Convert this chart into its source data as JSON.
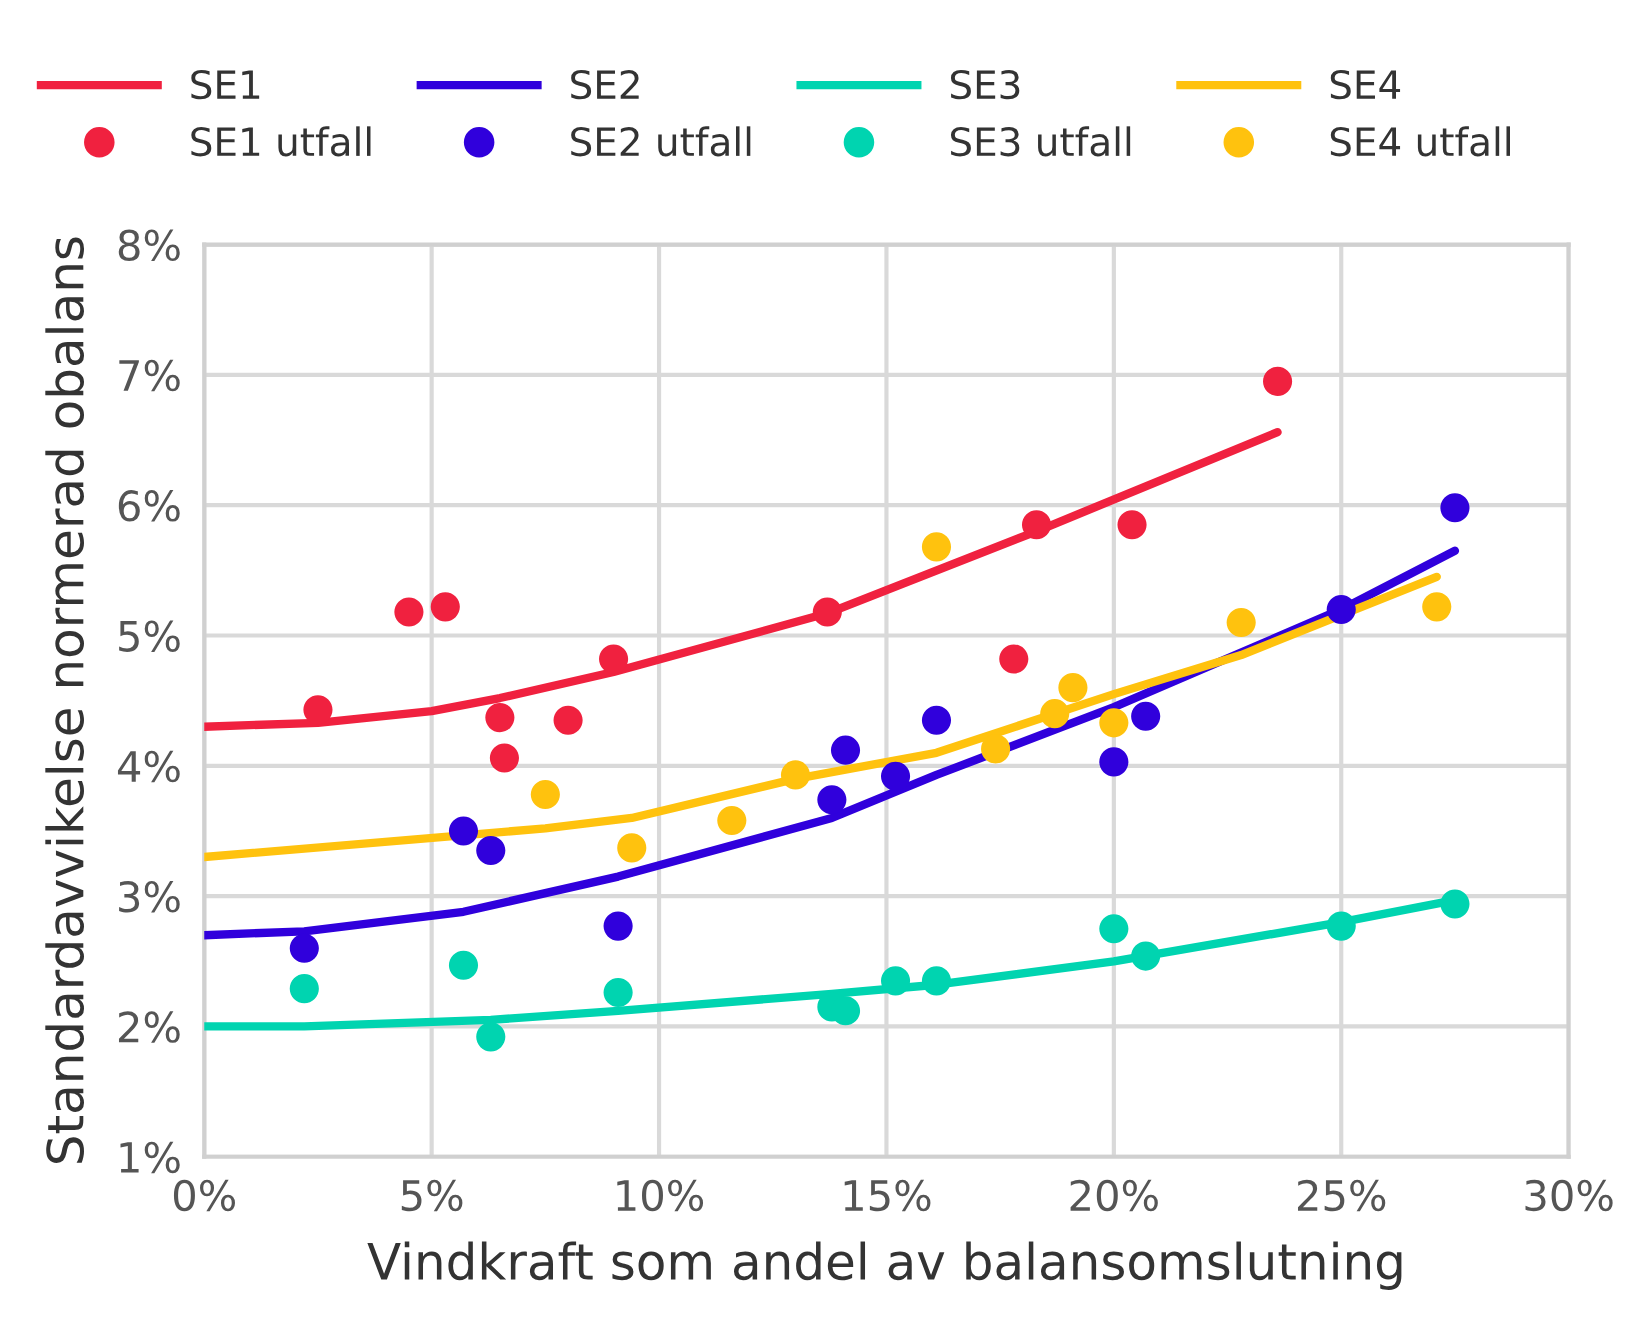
{
  "chart_data": {
    "type": "line",
    "xlabel": "Vindkraft som andel av balansomslutning",
    "ylabel": "Standardavvikelse normerad obalans",
    "xlim": [
      0,
      30
    ],
    "xticks": [
      {
        "value": 0,
        "label": "0%"
      },
      {
        "value": 5,
        "label": "5%"
      },
      {
        "value": 10,
        "label": "10%"
      },
      {
        "value": 15,
        "label": "15%"
      },
      {
        "value": 20,
        "label": "20%"
      },
      {
        "value": 25,
        "label": "25%"
      },
      {
        "value": 30,
        "label": "30%"
      }
    ],
    "ylim": [
      1,
      8
    ],
    "yticks": [
      {
        "value": 1,
        "label": "1%"
      },
      {
        "value": 2,
        "label": "2%"
      },
      {
        "value": 3,
        "label": "3%"
      },
      {
        "value": 4,
        "label": "4%"
      },
      {
        "value": 5,
        "label": "5%"
      },
      {
        "value": 6,
        "label": "6%"
      },
      {
        "value": 7,
        "label": "7%"
      },
      {
        "value": 8,
        "label": "8%"
      }
    ],
    "grid": true,
    "legend": "top",
    "line_style": "solid",
    "series": [
      {
        "name": "SE1",
        "marker": "none",
        "color": "#f0213f",
        "x": [
          0,
          2.5,
          5,
          6.5,
          9,
          13.7,
          18.3,
          23.6
        ],
        "values": [
          4.3,
          4.33,
          4.42,
          4.52,
          4.72,
          5.17,
          5.8,
          6.56
        ]
      },
      {
        "name": "SE1 utfall",
        "type": "scatter",
        "marker": "circle",
        "color": "#f0213f",
        "x": [
          2.5,
          4.5,
          5.3,
          6.5,
          6.6,
          8.0,
          9.0,
          13.7,
          17.8,
          18.3,
          20.4,
          23.6
        ],
        "values": [
          4.43,
          5.18,
          5.22,
          4.37,
          4.06,
          4.35,
          4.82,
          5.18,
          4.82,
          5.85,
          5.85,
          6.95
        ]
      },
      {
        "name": "SE2",
        "marker": "none",
        "color": "#3000dc",
        "x": [
          0,
          2.2,
          5.7,
          9.1,
          13.8,
          16.1,
          20,
          25,
          27.5
        ],
        "values": [
          2.7,
          2.73,
          2.88,
          3.15,
          3.6,
          3.93,
          4.45,
          5.2,
          5.65
        ]
      },
      {
        "name": "SE2 utfall",
        "type": "scatter",
        "marker": "circle",
        "color": "#3000dc",
        "x": [
          2.2,
          5.7,
          6.3,
          9.1,
          13.8,
          14.1,
          15.2,
          16.1,
          20.0,
          20.7,
          25.0,
          27.5
        ],
        "values": [
          2.6,
          3.5,
          3.35,
          2.77,
          3.74,
          4.12,
          3.92,
          4.35,
          4.03,
          4.38,
          5.2,
          5.98
        ]
      },
      {
        "name": "SE3",
        "marker": "none",
        "color": "#00d4b0",
        "x": [
          0,
          2.2,
          6.3,
          9.1,
          13.8,
          16.1,
          20,
          25,
          27.5
        ],
        "values": [
          2.0,
          2.0,
          2.05,
          2.12,
          2.25,
          2.32,
          2.5,
          2.8,
          2.97
        ]
      },
      {
        "name": "SE3 utfall",
        "type": "scatter",
        "marker": "circle",
        "color": "#00d4b0",
        "x": [
          2.2,
          5.7,
          6.3,
          9.1,
          13.8,
          14.1,
          15.2,
          16.1,
          20.0,
          20.7,
          25.0,
          27.5
        ],
        "values": [
          2.29,
          2.47,
          1.92,
          2.26,
          2.15,
          2.12,
          2.35,
          2.35,
          2.75,
          2.54,
          2.77,
          2.94
        ]
      },
      {
        "name": "SE4",
        "marker": "none",
        "color": "#ffc20e",
        "x": [
          0,
          7.5,
          9.4,
          13,
          16.1,
          20,
          22.8,
          27.1
        ],
        "values": [
          3.3,
          3.52,
          3.6,
          3.9,
          4.1,
          4.55,
          4.85,
          5.45
        ]
      },
      {
        "name": "SE4 utfall",
        "type": "scatter",
        "marker": "circle",
        "color": "#ffc20e",
        "x": [
          7.5,
          9.4,
          11.6,
          13.0,
          16.1,
          17.4,
          18.7,
          19.1,
          20.0,
          22.8,
          27.1
        ],
        "values": [
          3.78,
          3.37,
          3.58,
          3.93,
          5.68,
          4.13,
          4.4,
          4.6,
          4.33,
          5.1,
          5.22
        ]
      }
    ]
  }
}
